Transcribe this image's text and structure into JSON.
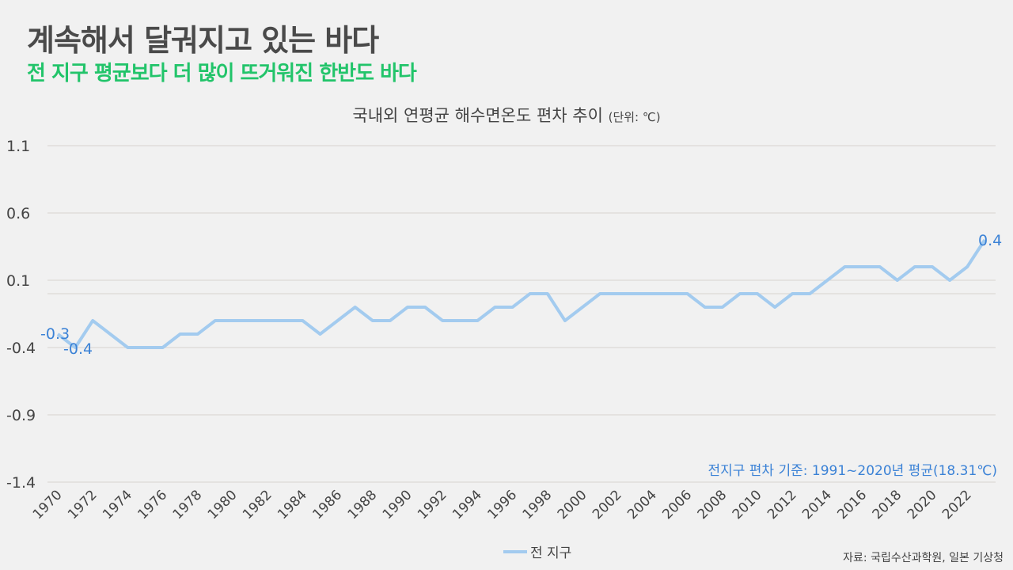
{
  "header": {
    "title": "계속해서 달궈지고 있는 바다",
    "subtitle": "전 지구 평균보다 더 많이 뜨거워진 한반도 바다"
  },
  "chart_data": {
    "type": "line",
    "title": "국내외 연평균 해수면온도 편차 추이",
    "unit": "(단위: ℃)",
    "xlabel": "",
    "ylabel": "",
    "ylim": [
      -1.4,
      1.1
    ],
    "yticks": [
      1.1,
      0.6,
      0.1,
      -0.4,
      -0.9,
      -1.4
    ],
    "x": [
      1970,
      1971,
      1972,
      1973,
      1974,
      1975,
      1976,
      1977,
      1978,
      1979,
      1980,
      1981,
      1982,
      1983,
      1984,
      1985,
      1986,
      1987,
      1988,
      1989,
      1990,
      1991,
      1992,
      1993,
      1994,
      1995,
      1996,
      1997,
      1998,
      1999,
      2000,
      2001,
      2002,
      2003,
      2004,
      2005,
      2006,
      2007,
      2008,
      2009,
      2010,
      2011,
      2012,
      2013,
      2014,
      2015,
      2016,
      2017,
      2018,
      2019,
      2020,
      2021,
      2022,
      2023
    ],
    "xticks": [
      "1970",
      "1972",
      "1974",
      "1976",
      "1978",
      "1980",
      "1982",
      "1984",
      "1986",
      "1988",
      "1990",
      "1992",
      "1994",
      "1996",
      "1998",
      "2000",
      "2002",
      "2004",
      "2006",
      "2008",
      "2010",
      "2012",
      "2014",
      "2016",
      "2018",
      "2020",
      "2022"
    ],
    "series": [
      {
        "name": "전 지구",
        "color": "#a3cbef",
        "values": [
          -0.3,
          -0.4,
          -0.2,
          -0.3,
          -0.4,
          -0.4,
          -0.4,
          -0.3,
          -0.3,
          -0.2,
          -0.2,
          -0.2,
          -0.2,
          -0.2,
          -0.2,
          -0.3,
          -0.2,
          -0.1,
          -0.2,
          -0.2,
          -0.1,
          -0.1,
          -0.2,
          -0.2,
          -0.2,
          -0.1,
          -0.1,
          0.0,
          0.0,
          -0.2,
          -0.1,
          0.0,
          0.0,
          0.0,
          0.0,
          0.0,
          0.0,
          -0.1,
          -0.1,
          0.0,
          0.0,
          -0.1,
          0.0,
          0.0,
          0.1,
          0.2,
          0.2,
          0.2,
          0.1,
          0.2,
          0.2,
          0.1,
          0.2,
          0.4
        ]
      }
    ],
    "data_labels": [
      {
        "x": 1970,
        "text": "-0.3"
      },
      {
        "x": 1971,
        "text": "-0.4"
      },
      {
        "x": 2023,
        "text": "0.4"
      }
    ],
    "annotation": "전지구 편차 기준: 1991~2020년 평균(18.31℃)",
    "legend_position": "bottom",
    "grid": true
  },
  "source": "자료: 국립수산과학원, 일본 기상청"
}
